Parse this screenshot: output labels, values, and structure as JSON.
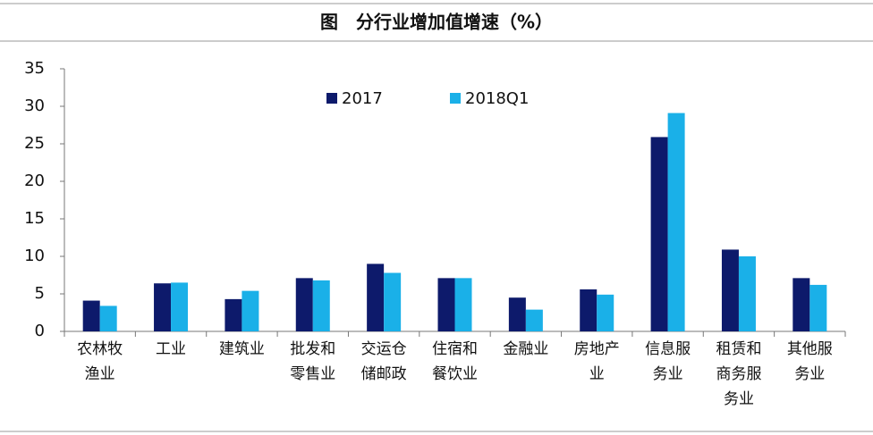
{
  "chart_data": {
    "type": "bar",
    "title": "图　分行业增加值增速（%）",
    "categories": [
      "农林牧渔业",
      "工业",
      "建筑业",
      "批发和零售业",
      "交运仓储邮政",
      "住宿和餐饮业",
      "金融业",
      "房地产业",
      "信息服务业",
      "租赁和商务服务业",
      "其他服务业"
    ],
    "series": [
      {
        "name": "2017",
        "color": "#0d1a6b",
        "values": [
          4.1,
          6.4,
          4.3,
          7.1,
          9.0,
          7.1,
          4.5,
          5.6,
          25.9,
          10.9,
          7.1
        ]
      },
      {
        "name": "2018Q1",
        "color": "#1ab0e8",
        "values": [
          3.4,
          6.5,
          5.4,
          6.8,
          7.8,
          7.1,
          2.9,
          4.9,
          29.1,
          10.0,
          6.2
        ]
      }
    ],
    "ylim": [
      0,
      35
    ],
    "yticks": [
      0,
      5,
      10,
      15,
      20,
      25,
      30,
      35
    ],
    "legend": "top-center"
  }
}
